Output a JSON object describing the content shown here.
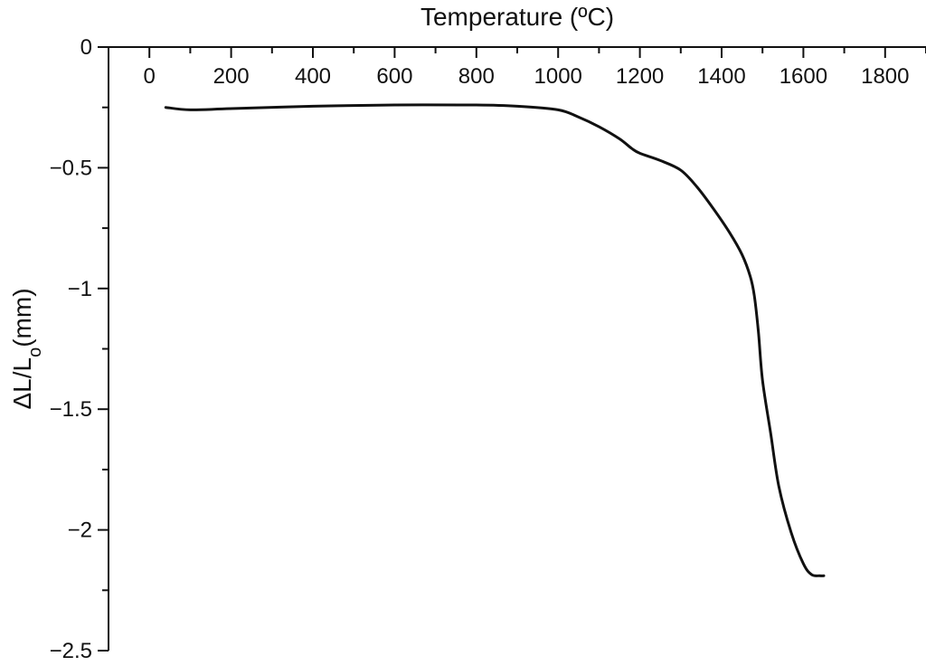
{
  "chart_data": {
    "type": "line",
    "title": "",
    "xlabel": "Temperature (ºC)",
    "ylabel_main": "ΔL/L",
    "ylabel_sub": "o",
    "ylabel_unit": "(mm)",
    "xlim": [
      -100,
      1900
    ],
    "ylim": [
      -2.5,
      0
    ],
    "x_axis_position": "top",
    "grid": false,
    "x_ticks": [
      0,
      200,
      400,
      600,
      800,
      1000,
      1200,
      1400,
      1600,
      1800
    ],
    "x_tick_labels": [
      "0",
      "200",
      "400",
      "600",
      "800",
      "1000",
      "1200",
      "1400",
      "1600",
      "1800"
    ],
    "y_ticks": [
      0,
      -0.5,
      -1,
      -1.5,
      -2,
      -2.5
    ],
    "y_tick_labels": [
      "0",
      "−0.5",
      "−1",
      "−1.5",
      "−2",
      "−2.5"
    ],
    "series": [
      {
        "x": [
          40,
          100,
          200,
          400,
          600,
          800,
          900,
          1000,
          1050,
          1100,
          1150,
          1180,
          1200,
          1250,
          1300,
          1340,
          1380,
          1420,
          1450,
          1470,
          1480,
          1490,
          1500,
          1520,
          1540,
          1570,
          1600,
          1620,
          1640,
          1650
        ],
        "y": [
          -0.25,
          -0.26,
          -0.255,
          -0.245,
          -0.24,
          -0.24,
          -0.245,
          -0.26,
          -0.29,
          -0.33,
          -0.38,
          -0.42,
          -0.44,
          -0.47,
          -0.51,
          -0.58,
          -0.67,
          -0.77,
          -0.86,
          -0.95,
          -1.03,
          -1.18,
          -1.38,
          -1.6,
          -1.82,
          -2.01,
          -2.14,
          -2.185,
          -2.19,
          -2.19
        ]
      }
    ]
  }
}
